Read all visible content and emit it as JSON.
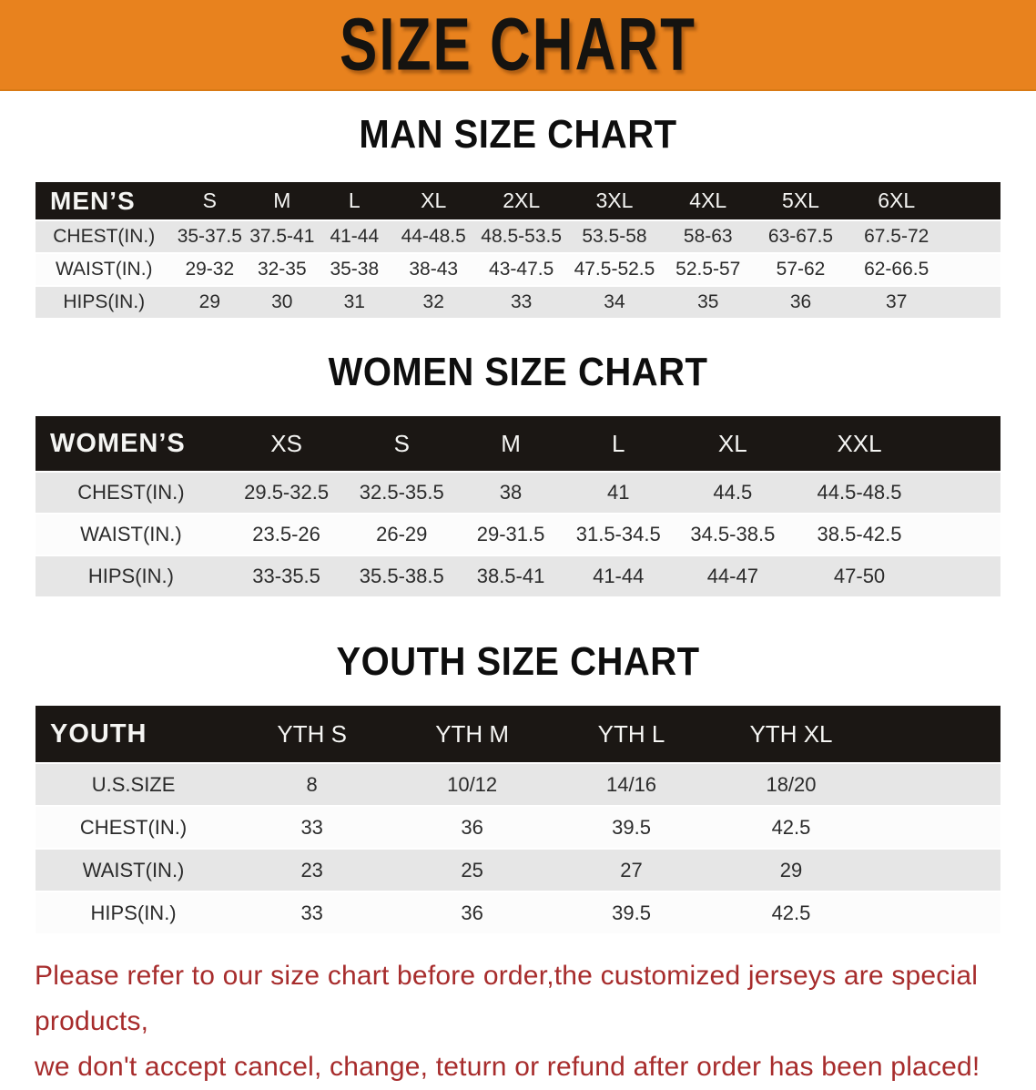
{
  "banner": {
    "title": "SIZE CHART",
    "bg_color": "#E8821E",
    "text_color": "#151310"
  },
  "colors": {
    "table_header_band": "#1B1714",
    "row_stripe_gray": "#E6E6E6",
    "row_stripe_white": "#FCFCFC",
    "disclaimer_red": "#A72C2C"
  },
  "sections": [
    {
      "title": "MAN SIZE CHART",
      "header_label": "MEN’S",
      "columns": [
        "S",
        "M",
        "L",
        "XL",
        "2XL",
        "3XL",
        "4XL",
        "5XL",
        "6XL"
      ],
      "rows": [
        {
          "label": "CHEST(IN.)",
          "values": [
            "35-37.5",
            "37.5-41",
            "41-44",
            "44-48.5",
            "48.5-53.5",
            "53.5-58",
            "58-63",
            "63-67.5",
            "67.5-72"
          ]
        },
        {
          "label": "WAIST(IN.)",
          "values": [
            "29-32",
            "32-35",
            "35-38",
            "38-43",
            "43-47.5",
            "47.5-52.5",
            "52.5-57",
            "57-62",
            "62-66.5"
          ]
        },
        {
          "label": "HIPS(IN.)",
          "values": [
            "29",
            "30",
            "31",
            "32",
            "33",
            "34",
            "35",
            "36",
            "37"
          ]
        }
      ]
    },
    {
      "title": "WOMEN SIZE CHART",
      "header_label": "WOMEN’S",
      "columns": [
        "XS",
        "S",
        "M",
        "L",
        "XL",
        "XXL"
      ],
      "rows": [
        {
          "label": "CHEST(IN.)",
          "values": [
            "29.5-32.5",
            "32.5-35.5",
            "38",
            "41",
            "44.5",
            "44.5-48.5"
          ]
        },
        {
          "label": "WAIST(IN.)",
          "values": [
            "23.5-26",
            "26-29",
            "29-31.5",
            "31.5-34.5",
            "34.5-38.5",
            "38.5-42.5"
          ]
        },
        {
          "label": "HIPS(IN.)",
          "values": [
            "33-35.5",
            "35.5-38.5",
            "38.5-41",
            "41-44",
            "44-47",
            "47-50"
          ]
        }
      ]
    },
    {
      "title": "YOUTH SIZE CHART",
      "header_label": "YOUTH",
      "columns": [
        "YTH S",
        "YTH M",
        "YTH L",
        "YTH XL"
      ],
      "rows": [
        {
          "label": "U.S.SIZE",
          "values": [
            "8",
            "10/12",
            "14/16",
            "18/20"
          ]
        },
        {
          "label": "CHEST(IN.)",
          "values": [
            "33",
            "36",
            "39.5",
            "42.5"
          ]
        },
        {
          "label": "WAIST(IN.)",
          "values": [
            "23",
            "25",
            "27",
            "29"
          ]
        },
        {
          "label": "HIPS(IN.)",
          "values": [
            "33",
            "36",
            "39.5",
            "42.5"
          ]
        }
      ]
    }
  ],
  "disclaimer": {
    "line1": "Please refer to our size chart before order,the customized jerseys are special products,",
    "line2": "we don't accept cancel, change, teturn or refund after order has been placed!"
  }
}
